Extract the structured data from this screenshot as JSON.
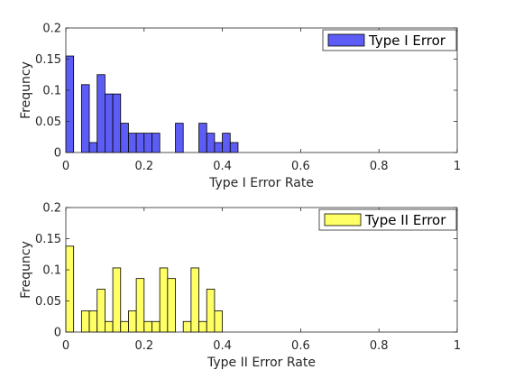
{
  "chart_data": [
    {
      "type": "bar",
      "subtype": "histogram",
      "xlabel": "Type I Error Rate",
      "ylabel": "Frequncy",
      "xlim": [
        0,
        1
      ],
      "ylim": [
        0,
        0.2
      ],
      "xticks": [
        "0",
        "0.2",
        "0.4",
        "0.6",
        "0.8",
        "1"
      ],
      "yticks": [
        "0",
        "0.05",
        "0.1",
        "0.15",
        "0.2"
      ],
      "bin_width": 0.02,
      "bins_start": [
        0,
        0.02,
        0.04,
        0.06,
        0.08,
        0.1,
        0.12,
        0.14,
        0.16,
        0.18,
        0.2,
        0.22,
        0.24,
        0.26,
        0.28,
        0.3,
        0.32,
        0.34,
        0.36,
        0.38,
        0.4,
        0.42
      ],
      "values": [
        0.155,
        0,
        0.109,
        0.016,
        0.125,
        0.094,
        0.094,
        0.047,
        0.031,
        0.031,
        0.031,
        0.031,
        0,
        0,
        0.047,
        0,
        0,
        0.047,
        0.031,
        0.016,
        0.031,
        0.016
      ],
      "series": [
        {
          "name": "Type I Error",
          "color": "#5d5df5"
        }
      ],
      "legend_position": "top-right",
      "grid": false
    },
    {
      "type": "bar",
      "subtype": "histogram",
      "xlabel": "Type II Error Rate",
      "ylabel": "Frequncy",
      "xlim": [
        0,
        1
      ],
      "ylim": [
        0,
        0.2
      ],
      "xticks": [
        "0",
        "0.2",
        "0.4",
        "0.6",
        "0.8",
        "1"
      ],
      "yticks": [
        "0",
        "0.05",
        "0.1",
        "0.15",
        "0.2"
      ],
      "bin_width": 0.02,
      "bins_start": [
        0,
        0.02,
        0.04,
        0.06,
        0.08,
        0.1,
        0.12,
        0.14,
        0.16,
        0.18,
        0.2,
        0.22,
        0.24,
        0.26,
        0.28,
        0.3,
        0.32,
        0.34,
        0.36,
        0.38
      ],
      "values": [
        0.138,
        0,
        0.034,
        0.034,
        0.069,
        0.017,
        0.103,
        0.017,
        0.034,
        0.086,
        0.017,
        0.017,
        0.103,
        0.086,
        0,
        0.017,
        0.103,
        0.017,
        0.069,
        0.034
      ],
      "series": [
        {
          "name": "Type II Error",
          "color": "#ffff66"
        }
      ],
      "legend_position": "top-right",
      "grid": false
    }
  ]
}
